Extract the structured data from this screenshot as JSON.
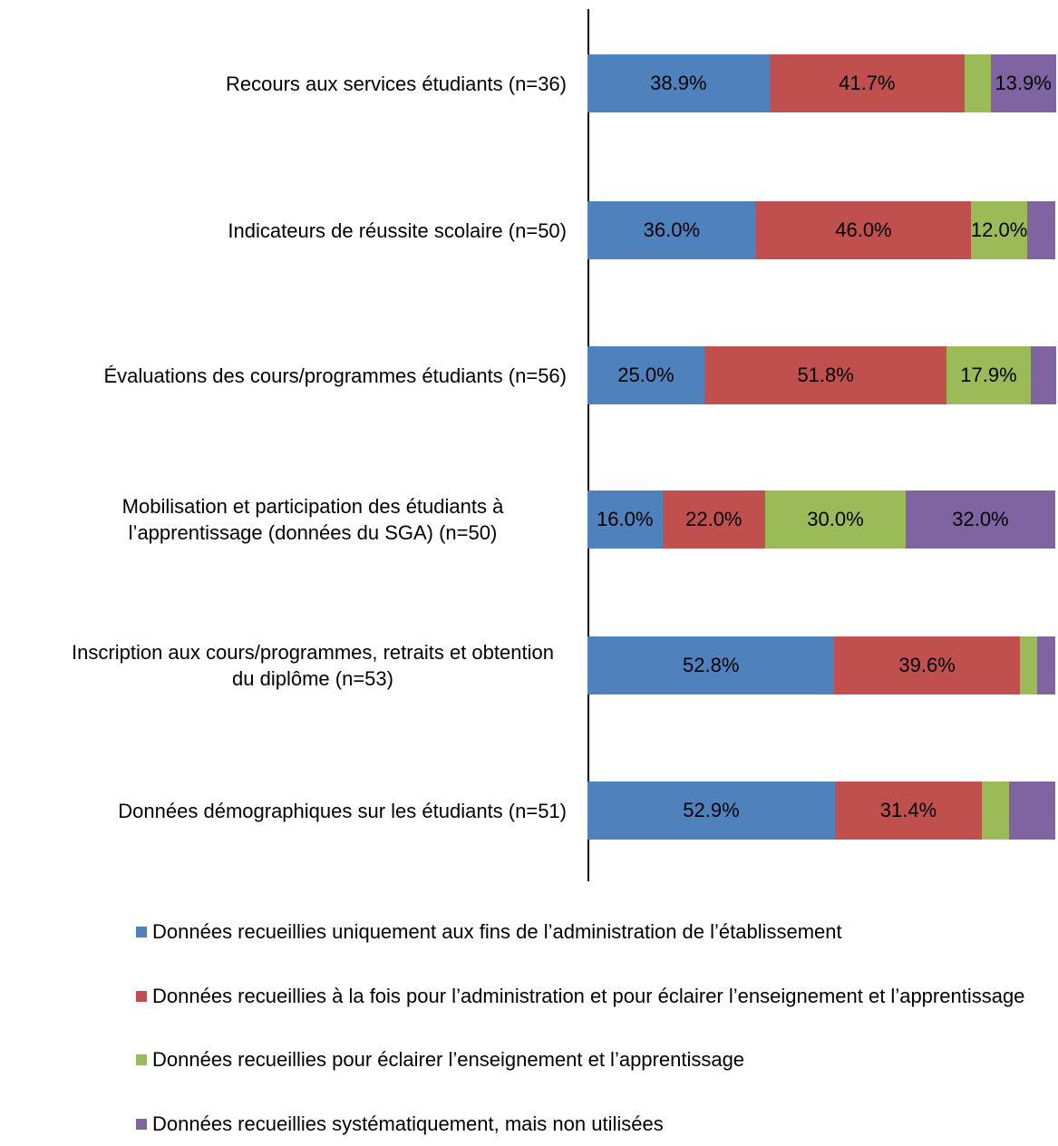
{
  "chart_data": {
    "type": "stacked-bar-horizontal",
    "categories": [
      "Recours aux services étudiants (n=36)",
      "Indicateurs de réussite scolaire (n=50)",
      "Évaluations des cours/programmes étudiants (n=56)",
      "Mobilisation et participation des étudiants à l’apprentissage (données du SGA) (n=50)",
      "Inscription aux cours/programmes, retraits et obtention du diplôme (n=53)",
      "Données démographiques sur les étudiants (n=51)"
    ],
    "series": [
      {
        "name": "Données recueillies uniquement aux fins de l’administration de l’établissement",
        "color": "#4f81bd",
        "values": [
          38.9,
          36.0,
          25.0,
          16.0,
          52.8,
          52.9
        ],
        "value_labels": [
          "38.9%",
          "36.0%",
          "25.0%",
          "16.0%",
          "52.8%",
          "52.9%"
        ]
      },
      {
        "name": "Données recueillies à la fois pour l’administration et pour éclairer l’enseignement et l’apprentissage",
        "color": "#c0504d",
        "values": [
          41.7,
          46.0,
          51.8,
          22.0,
          39.6,
          31.4
        ],
        "value_labels": [
          "41.7%",
          "46.0%",
          "51.8%",
          "22.0%",
          "39.6%",
          "31.4%"
        ]
      },
      {
        "name": "Données recueillies pour éclairer l’enseignement et l’apprentissage",
        "color": "#9bbb59",
        "values": [
          5.6,
          12.0,
          17.9,
          30.0,
          3.8,
          5.9
        ],
        "value_labels": [
          null,
          "12.0%",
          "17.9%",
          "30.0%",
          null,
          null
        ]
      },
      {
        "name": "Données recueillies systématiquement, mais non utilisées",
        "color": "#8064a2",
        "values": [
          13.9,
          6.0,
          5.4,
          32.0,
          3.8,
          9.8
        ],
        "value_labels": [
          "13.9%",
          null,
          null,
          "32.0%",
          null,
          null
        ]
      }
    ],
    "xlim": [
      0,
      100
    ],
    "legend": "bottom"
  }
}
